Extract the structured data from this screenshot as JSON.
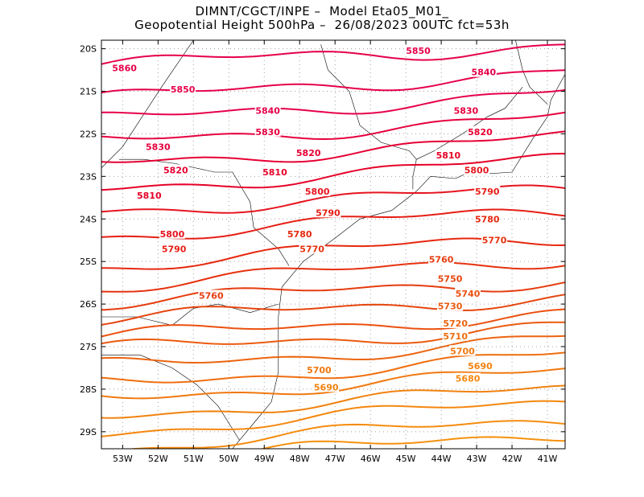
{
  "header": {
    "line1": "DIMNT/CGCT/INPE –  Model Eta05_M01_",
    "line2": "Geopotential Height 500hPa –  26/08/2023 00UTC fct=53h"
  },
  "chart_data": {
    "type": "contour-map",
    "variable": "Geopotential Height 500hPa",
    "units": "gpm",
    "lon_range": [
      -53.6,
      -40.5
    ],
    "lat_range": [
      -29.4,
      -19.8
    ],
    "lon_ticks": [
      "53W",
      "52W",
      "51W",
      "50W",
      "49W",
      "48W",
      "47W",
      "46W",
      "45W",
      "44W",
      "43W",
      "42W",
      "41W"
    ],
    "lat_ticks": [
      "20S",
      "21S",
      "22S",
      "23S",
      "24S",
      "25S",
      "26S",
      "27S",
      "28S",
      "29S"
    ],
    "grid": "dotted",
    "contour_interval": 10,
    "contours": [
      {
        "value": 5860,
        "label": "5860",
        "color": "#e6004a",
        "lat_west": -20.4,
        "lat_east": -19.9
      },
      {
        "value": 5850,
        "label": "5850",
        "color": "#e6004a",
        "lat_west": -21.2,
        "lat_east": -20.5
      },
      {
        "value": 5840,
        "label": "5840",
        "color": "#e6004a",
        "lat_west": -21.7,
        "lat_east": -21.0
      },
      {
        "value": 5830,
        "label": "5830",
        "color": "#e6003e",
        "lat_west": -22.2,
        "lat_east": -21.6
      },
      {
        "value": 5820,
        "label": "5820",
        "color": "#e60033",
        "lat_west": -22.7,
        "lat_east": -22.1
      },
      {
        "value": 5810,
        "label": "5810",
        "color": "#e60028",
        "lat_west": -23.3,
        "lat_east": -22.6
      },
      {
        "value": 5800,
        "label": "5800",
        "color": "#e6141e",
        "lat_west": -23.8,
        "lat_east": -23.3
      },
      {
        "value": 5790,
        "label": "5790",
        "color": "#e61e14",
        "lat_west": -24.4,
        "lat_east": -23.8
      },
      {
        "value": 5780,
        "label": "5780",
        "color": "#e6280f",
        "lat_west": -25.1,
        "lat_east": -24.4
      },
      {
        "value": 5770,
        "label": "5770",
        "color": "#e6320f",
        "lat_west": -25.6,
        "lat_east": -24.9
      },
      {
        "value": 5760,
        "label": "5760",
        "color": "#e63c0f",
        "lat_west": -26.0,
        "lat_east": -25.4
      },
      {
        "value": 5750,
        "label": "5750",
        "color": "#e6460f",
        "lat_west": -26.4,
        "lat_east": -25.8
      },
      {
        "value": 5740,
        "label": "5740",
        "color": "#eb500f",
        "lat_west": -26.8,
        "lat_east": -26.2
      },
      {
        "value": 5730,
        "label": "5730",
        "color": "#eb5a0f",
        "lat_west": -27.1,
        "lat_east": -26.5
      },
      {
        "value": 5720,
        "label": "5720",
        "color": "#eb640f",
        "lat_west": -27.5,
        "lat_east": -26.8
      },
      {
        "value": 5710,
        "label": "5710",
        "color": "#f06e0f",
        "lat_west": -27.9,
        "lat_east": -27.2
      },
      {
        "value": 5700,
        "label": "5700",
        "color": "#f0780f",
        "lat_west": -28.2,
        "lat_east": -27.6
      },
      {
        "value": 5690,
        "label": "5690",
        "color": "#f0820f",
        "lat_west": -28.6,
        "lat_east": -28.0
      },
      {
        "value": 5680,
        "label": "5680",
        "color": "#f5870f",
        "lat_west": -29.0,
        "lat_east": -28.3
      },
      {
        "value": 5670,
        "label": "",
        "color": "#f58c0f",
        "lat_west": -29.4,
        "lat_east": -28.7
      },
      {
        "value": 5660,
        "label": "",
        "color": "#f5910f",
        "lat_west": -29.8,
        "lat_east": -29.0
      },
      {
        "value": 5650,
        "label": "",
        "color": "#f5960f",
        "lat_west": -30.2,
        "lat_east": -29.3
      }
    ],
    "labels": [
      {
        "text": "5860",
        "color": "#e6004a",
        "lon": -52.95,
        "lat": -20.45
      },
      {
        "text": "5850",
        "color": "#e6004a",
        "lon": -51.3,
        "lat": -20.95
      },
      {
        "text": "5850",
        "color": "#e6004a",
        "lon": -44.65,
        "lat": -20.05
      },
      {
        "text": "5840",
        "color": "#e6004a",
        "lon": -48.9,
        "lat": -21.45
      },
      {
        "text": "5840",
        "color": "#e6004a",
        "lon": -42.8,
        "lat": -20.55
      },
      {
        "text": "5830",
        "color": "#e6003e",
        "lon": -52.0,
        "lat": -22.3
      },
      {
        "text": "5830",
        "color": "#e6003e",
        "lon": -48.9,
        "lat": -21.95
      },
      {
        "text": "5830",
        "color": "#e6003e",
        "lon": -43.3,
        "lat": -21.45
      },
      {
        "text": "5820",
        "color": "#e60033",
        "lon": -51.5,
        "lat": -22.85
      },
      {
        "text": "5820",
        "color": "#e60033",
        "lon": -47.75,
        "lat": -22.45
      },
      {
        "text": "5820",
        "color": "#e60033",
        "lon": -42.9,
        "lat": -21.95
      },
      {
        "text": "5810",
        "color": "#e60028",
        "lon": -52.25,
        "lat": -23.45
      },
      {
        "text": "5810",
        "color": "#e60028",
        "lon": -48.7,
        "lat": -22.9
      },
      {
        "text": "5810",
        "color": "#e60028",
        "lon": -43.8,
        "lat": -22.5
      },
      {
        "text": "5800",
        "color": "#e6141e",
        "lon": -51.6,
        "lat": -24.35
      },
      {
        "text": "5800",
        "color": "#e6141e",
        "lon": -47.5,
        "lat": -23.35
      },
      {
        "text": "5800",
        "color": "#e6141e",
        "lon": -43.0,
        "lat": -22.85
      },
      {
        "text": "5790",
        "color": "#e61e14",
        "lon": -51.55,
        "lat": -24.7
      },
      {
        "text": "5790",
        "color": "#e61e14",
        "lon": -47.2,
        "lat": -23.85
      },
      {
        "text": "5790",
        "color": "#e61e14",
        "lon": -42.7,
        "lat": -23.35
      },
      {
        "text": "5780",
        "color": "#e6280f",
        "lon": -48.0,
        "lat": -24.35
      },
      {
        "text": "5780",
        "color": "#e6280f",
        "lon": -42.7,
        "lat": -24.0
      },
      {
        "text": "5770",
        "color": "#e6320f",
        "lon": -47.65,
        "lat": -24.7
      },
      {
        "text": "5770",
        "color": "#e6320f",
        "lon": -42.5,
        "lat": -24.5
      },
      {
        "text": "5760",
        "color": "#e63c0f",
        "lon": -50.5,
        "lat": -25.8
      },
      {
        "text": "5760",
        "color": "#e63c0f",
        "lon": -44.0,
        "lat": -24.95
      },
      {
        "text": "5750",
        "color": "#e6460f",
        "lon": -43.75,
        "lat": -25.4
      },
      {
        "text": "5740",
        "color": "#eb500f",
        "lon": -43.25,
        "lat": -25.75
      },
      {
        "text": "5730",
        "color": "#eb5a0f",
        "lon": -43.75,
        "lat": -26.05
      },
      {
        "text": "5720",
        "color": "#eb640f",
        "lon": -43.6,
        "lat": -26.45
      },
      {
        "text": "5710",
        "color": "#f06e0f",
        "lon": -43.6,
        "lat": -26.75
      },
      {
        "text": "5700",
        "color": "#f0780f",
        "lon": -47.45,
        "lat": -27.55
      },
      {
        "text": "5700",
        "color": "#f0780f",
        "lon": -43.4,
        "lat": -27.1
      },
      {
        "text": "5690",
        "color": "#f0820f",
        "lon": -47.25,
        "lat": -27.95
      },
      {
        "text": "5690",
        "color": "#f0820f",
        "lon": -42.9,
        "lat": -27.45
      },
      {
        "text": "5680",
        "color": "#f5870f",
        "lon": -43.25,
        "lat": -27.75
      }
    ],
    "coastline_color": "#000000",
    "grid_color": "#a0a0a0"
  }
}
